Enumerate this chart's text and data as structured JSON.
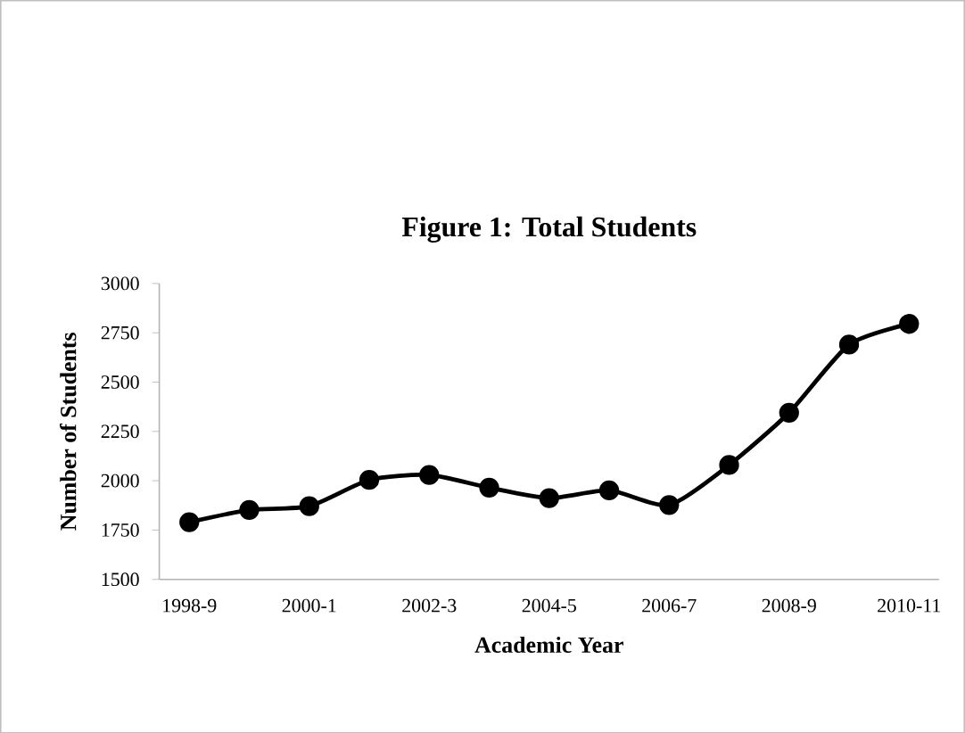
{
  "chart_data": {
    "type": "line",
    "title": "Figure 1:  Total Students",
    "xlabel": "Academic Year",
    "ylabel": "Number of Students",
    "categories": [
      "1998-9",
      null,
      "2000-1",
      null,
      "2002-3",
      null,
      "2004-5",
      null,
      "2006-7",
      null,
      "2008-9",
      null,
      "2010-11"
    ],
    "series": [
      {
        "color": "#000000",
        "values": [
          1790,
          1852,
          1871,
          2004,
          2029,
          1965,
          1912,
          1951,
          1877,
          2080,
          2345,
          2690,
          2795
        ]
      }
    ],
    "ylim": [
      1500,
      3000
    ],
    "yticks": [
      1500,
      1750,
      2000,
      2250,
      2500,
      2750,
      3000
    ],
    "grid": false,
    "marker": "circle",
    "line_style": "solid"
  }
}
